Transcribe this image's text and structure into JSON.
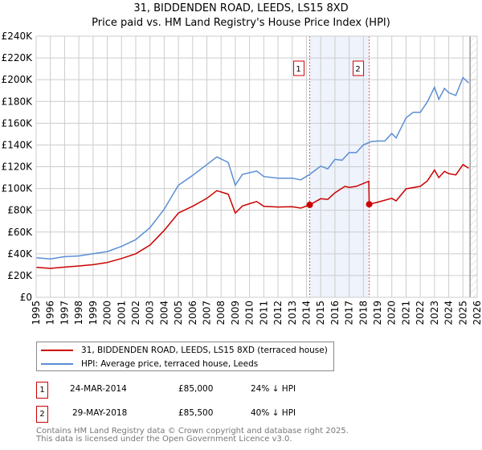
{
  "chart_data": {
    "type": "line",
    "title": "31, BIDDENDEN ROAD, LEEDS, LS15 8XD",
    "subtitle": "Price paid vs. HM Land Registry's House Price Index (HPI)",
    "xlim": [
      1995,
      2026
    ],
    "ylim": [
      0,
      240000
    ],
    "x_ticks": [
      "1995",
      "1996",
      "1997",
      "1998",
      "1999",
      "2000",
      "2001",
      "2002",
      "2003",
      "2004",
      "2005",
      "2006",
      "2007",
      "2008",
      "2009",
      "2010",
      "2011",
      "2012",
      "2013",
      "2014",
      "2015",
      "2016",
      "2017",
      "2018",
      "2019",
      "2020",
      "2021",
      "2022",
      "2023",
      "2024",
      "2025",
      "2026"
    ],
    "y_ticks": [
      {
        "v": 0,
        "label": "£0"
      },
      {
        "v": 20000,
        "label": "£20K"
      },
      {
        "v": 40000,
        "label": "£40K"
      },
      {
        "v": 60000,
        "label": "£60K"
      },
      {
        "v": 80000,
        "label": "£80K"
      },
      {
        "v": 100000,
        "label": "£100K"
      },
      {
        "v": 120000,
        "label": "£120K"
      },
      {
        "v": 140000,
        "label": "£140K"
      },
      {
        "v": 160000,
        "label": "£160K"
      },
      {
        "v": 180000,
        "label": "£180K"
      },
      {
        "v": 200000,
        "label": "£200K"
      },
      {
        "v": 220000,
        "label": "£220K"
      },
      {
        "v": 240000,
        "label": "£240K"
      }
    ],
    "grid": true,
    "shaded_range": [
      2014.23,
      2018.41
    ],
    "forecast_hatch_from": 2025.5,
    "series": [
      {
        "name": "31, BIDDENDEN ROAD, LEEDS, LS15 8XD (terraced house)",
        "color": "#cc0000",
        "x": [
          1995,
          1996,
          1997,
          1998,
          1999,
          2000,
          2001,
          2002,
          2003,
          2004,
          2005,
          2006,
          2007,
          2007.7,
          2008.5,
          2009,
          2009.5,
          2010,
          2010.5,
          2011,
          2012,
          2013,
          2013.6,
          2014.23,
          2015,
          2015.5,
          2016,
          2016.7,
          2017,
          2017.5,
          2018.38,
          2018.41,
          2019,
          2020,
          2020.3,
          2021,
          2022,
          2022.5,
          2023,
          2023.3,
          2023.7,
          2024,
          2024.5,
          2025,
          2025.4
        ],
        "y": [
          27600,
          26600,
          27800,
          28800,
          30000,
          32000,
          35700,
          40000,
          48000,
          61500,
          77500,
          83700,
          91000,
          98000,
          94800,
          77500,
          84000,
          86000,
          88000,
          83700,
          83000,
          83200,
          82000,
          85000,
          90600,
          90000,
          96000,
          102000,
          101000,
          102000,
          106600,
          85500,
          87400,
          91000,
          88600,
          99700,
          102000,
          107000,
          117000,
          110000,
          115700,
          113700,
          112500,
          122000,
          118600
        ]
      },
      {
        "name": "HPI: Average price, terraced house, Leeds",
        "color": "#5b8fd4",
        "x": [
          1995,
          1996,
          1997,
          1998,
          1999,
          2000,
          2001,
          2002,
          2003,
          2004,
          2005,
          2006,
          2007,
          2007.7,
          2008.5,
          2009,
          2009.5,
          2010,
          2010.5,
          2011,
          2012,
          2013,
          2013.6,
          2014.23,
          2015,
          2015.5,
          2016,
          2016.5,
          2017,
          2017.5,
          2018,
          2018.5,
          2019,
          2019.5,
          2020,
          2020.3,
          2021,
          2021.5,
          2022,
          2022.5,
          2023,
          2023.3,
          2023.7,
          2024,
          2024.5,
          2025,
          2025.4
        ],
        "y": [
          36400,
          35200,
          37400,
          38000,
          40000,
          42000,
          46800,
          53000,
          64000,
          81000,
          103000,
          112000,
          122000,
          129000,
          124000,
          103000,
          113000,
          114500,
          116000,
          111000,
          109500,
          109500,
          108000,
          113000,
          120600,
          118000,
          126800,
          126000,
          133000,
          133000,
          140000,
          143000,
          143600,
          143600,
          150600,
          146500,
          165000,
          170000,
          170000,
          179700,
          193000,
          182000,
          192000,
          188000,
          185500,
          202000,
          197000
        ]
      }
    ],
    "sales": [
      {
        "id": "1",
        "x": 2014.23,
        "y": 85000
      },
      {
        "id": "2",
        "x": 2018.41,
        "y": 85500
      }
    ]
  },
  "legend": {
    "items": [
      {
        "label": "31, BIDDENDEN ROAD, LEEDS, LS15 8XD (terraced house)",
        "color": "#cc0000"
      },
      {
        "label": "HPI: Average price, terraced house, Leeds",
        "color": "#5b8fd4"
      }
    ]
  },
  "transactions": [
    {
      "id": "1",
      "date": "24-MAR-2014",
      "price": "£85,000",
      "hpi": "24% ↓ HPI"
    },
    {
      "id": "2",
      "date": "29-MAY-2018",
      "price": "£85,500",
      "hpi": "40% ↓ HPI"
    }
  ],
  "footer": {
    "line1": "Contains HM Land Registry data © Crown copyright and database right 2025.",
    "line2": "This data is licensed under the Open Government Licence v3.0."
  }
}
